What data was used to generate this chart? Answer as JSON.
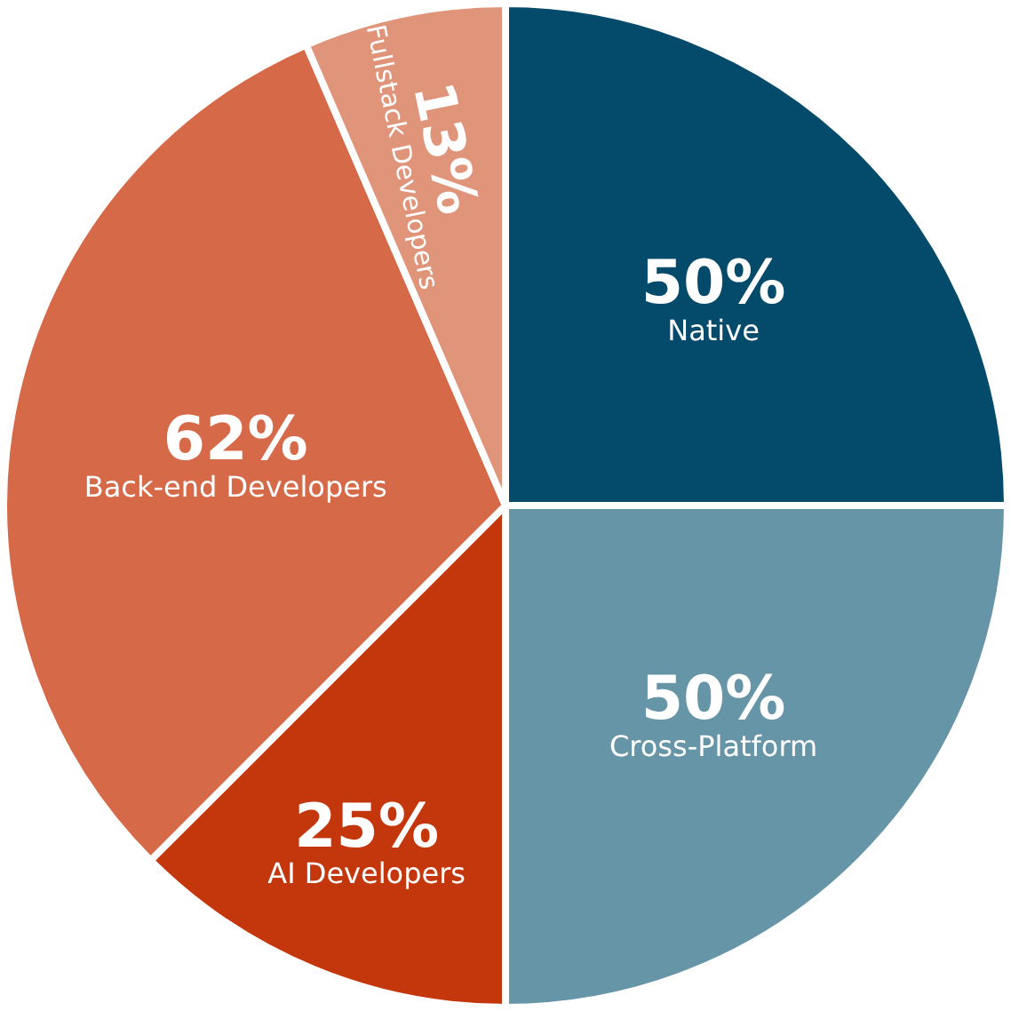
{
  "chart_data": {
    "type": "pie",
    "categories": [
      "Native",
      "Cross-Platform",
      "AI Developers",
      "Back-end Developers",
      "Fullstack Developers"
    ],
    "values": [
      50,
      50,
      25,
      62,
      13
    ],
    "value_labels": [
      "50%",
      "50%",
      "25%",
      "62%",
      "13%"
    ],
    "colors": [
      "#034a6b",
      "#6795a8",
      "#c4370c",
      "#d66a48",
      "#e0957a"
    ],
    "legend": false
  }
}
